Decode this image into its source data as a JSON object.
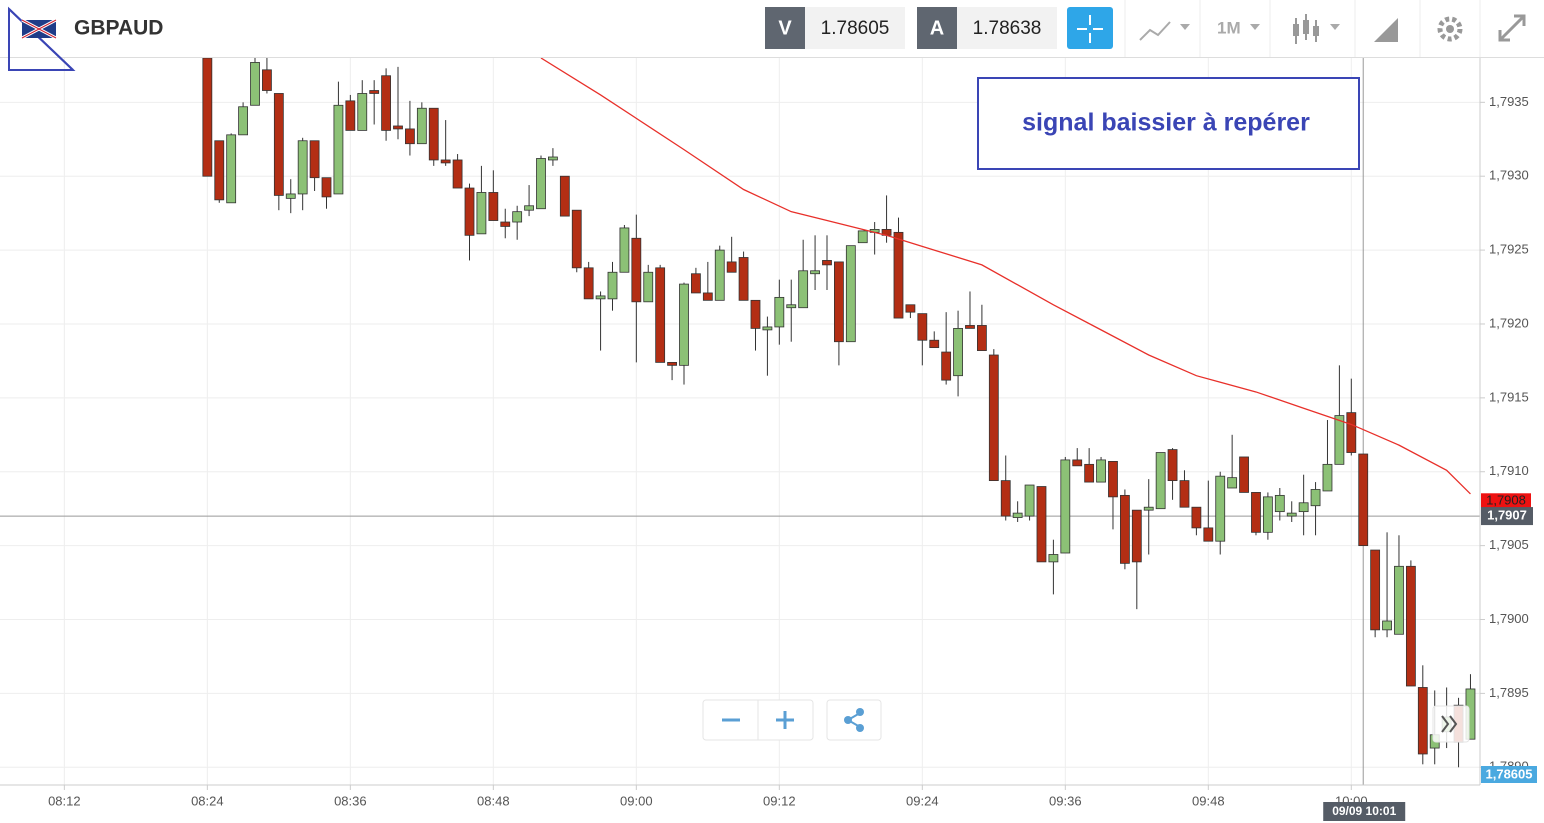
{
  "header": {
    "symbol": "GBPAUD",
    "bid_label": "V",
    "bid": "1.78605",
    "ask_label": "A",
    "ask": "1.78638",
    "timeframe": "1M"
  },
  "annotation": "signal baissier à repérer",
  "chart_data": {
    "type": "candlestick",
    "up_color": "#8cc176",
    "down_color": "#b32e14",
    "x": [
      504,
      505,
      506,
      507,
      508,
      509,
      510,
      511,
      512,
      513,
      514,
      515,
      516,
      517,
      518,
      519,
      520,
      521,
      522,
      523,
      524,
      525,
      526,
      527,
      528,
      529,
      530,
      531,
      532,
      533,
      534,
      535,
      536,
      537,
      538,
      539,
      540,
      541,
      542,
      543,
      544,
      545,
      546,
      547,
      548,
      549,
      550,
      551,
      552,
      553,
      554,
      555,
      556,
      557,
      558,
      559,
      560,
      561,
      562,
      563,
      564,
      565,
      566,
      567,
      568,
      569,
      570,
      571,
      572,
      573,
      574,
      575,
      576,
      577,
      578,
      579,
      580,
      581,
      582,
      583,
      584,
      585,
      586,
      587,
      588,
      589,
      590,
      591,
      592,
      593,
      594,
      595,
      596,
      597,
      598,
      599,
      600,
      601,
      602,
      603,
      604,
      605,
      606,
      607,
      608,
      609,
      610
    ],
    "open": [
      1.7938,
      1.79324,
      1.79282,
      1.79328,
      1.79348,
      1.79372,
      1.79356,
      1.79285,
      1.79288,
      1.79324,
      1.79299,
      1.79288,
      1.79351,
      1.79331,
      1.79358,
      1.79368,
      1.79334,
      1.79332,
      1.79322,
      1.79346,
      1.79311,
      1.79311,
      1.79292,
      1.79261,
      1.79289,
      1.79269,
      1.79269,
      1.79277,
      1.79278,
      1.79311,
      1.793,
      1.79277,
      1.79238,
      1.79217,
      1.79217,
      1.79235,
      1.79258,
      1.79215,
      1.79238,
      1.79174,
      1.79172,
      1.79234,
      1.79221,
      1.79216,
      1.79242,
      1.79245,
      1.79216,
      1.79196,
      1.79198,
      1.79211,
      1.79211,
      1.79234,
      1.79243,
      1.79242,
      1.79188,
      1.79255,
      1.79262,
      1.79264,
      1.79262,
      1.79213,
      1.79207,
      1.79189,
      1.79181,
      1.79165,
      1.79199,
      1.79199,
      1.79179,
      1.79094,
      1.79069,
      1.7907,
      1.7909,
      1.79039,
      1.79045,
      1.79108,
      1.79105,
      1.79093,
      1.79107,
      1.79084,
      1.79074,
      1.79074,
      1.79075,
      1.79115,
      1.79094,
      1.79076,
      1.79062,
      1.79053,
      1.79089,
      1.7911,
      1.79086,
      1.79059,
      1.79073,
      1.7907,
      1.79073,
      1.79077,
      1.79087,
      1.79105,
      1.7914,
      1.79112,
      1.79047,
      1.78993,
      1.7899,
      1.79036,
      1.78954,
      1.78913,
      1.78924,
      1.78942,
      1.78919
    ],
    "high": [
      1.7939,
      1.79324,
      1.79329,
      1.7935,
      1.79382,
      1.7938,
      1.79356,
      1.79298,
      1.79326,
      1.79324,
      1.79299,
      1.79364,
      1.79355,
      1.79365,
      1.79365,
      1.79373,
      1.79374,
      1.79351,
      1.7935,
      1.79346,
      1.79338,
      1.79315,
      1.79295,
      1.79307,
      1.79304,
      1.79278,
      1.7928,
      1.79294,
      1.79314,
      1.79319,
      1.793,
      1.79277,
      1.79242,
      1.79222,
      1.79242,
      1.79267,
      1.79274,
      1.7924,
      1.7924,
      1.79174,
      1.79228,
      1.79238,
      1.79242,
      1.79253,
      1.79259,
      1.79249,
      1.79216,
      1.79205,
      1.7923,
      1.7923,
      1.79257,
      1.7926,
      1.7926,
      1.79242,
      1.79253,
      1.79263,
      1.79269,
      1.79287,
      1.79272,
      1.79213,
      1.79207,
      1.79195,
      1.79208,
      1.79209,
      1.79222,
      1.79213,
      1.79183,
      1.79111,
      1.7908,
      1.79091,
      1.7909,
      1.79054,
      1.7911,
      1.79116,
      1.79116,
      1.7911,
      1.79107,
      1.79088,
      1.79074,
      1.79095,
      1.79113,
      1.79116,
      1.79101,
      1.79076,
      1.79094,
      1.791,
      1.79125,
      1.7911,
      1.79086,
      1.79086,
      1.79089,
      1.7908,
      1.79098,
      1.79093,
      1.79135,
      1.79172,
      1.79163,
      1.79112,
      1.79047,
      1.79059,
      1.79057,
      1.7904,
      1.78969,
      1.78952,
      1.78954,
      1.78947,
      1.78963
    ],
    "low": [
      1.793,
      1.79282,
      1.79282,
      1.79328,
      1.79348,
      1.79356,
      1.79277,
      1.79275,
      1.79277,
      1.7929,
      1.79278,
      1.79288,
      1.79331,
      1.79331,
      1.79335,
      1.79324,
      1.79325,
      1.79314,
      1.79322,
      1.79307,
      1.79307,
      1.79292,
      1.79243,
      1.79261,
      1.7927,
      1.79258,
      1.79257,
      1.79273,
      1.79278,
      1.79307,
      1.79273,
      1.79235,
      1.79217,
      1.79182,
      1.79209,
      1.79235,
      1.79174,
      1.79215,
      1.79174,
      1.79162,
      1.79159,
      1.79221,
      1.79216,
      1.79216,
      1.79235,
      1.79216,
      1.79182,
      1.79165,
      1.79186,
      1.79188,
      1.79211,
      1.79223,
      1.79223,
      1.79172,
      1.79188,
      1.79255,
      1.79247,
      1.79255,
      1.79204,
      1.79204,
      1.79172,
      1.79184,
      1.79159,
      1.79151,
      1.79197,
      1.79182,
      1.79094,
      1.79067,
      1.79066,
      1.79067,
      1.79039,
      1.79017,
      1.79045,
      1.79104,
      1.79093,
      1.79093,
      1.79061,
      1.79034,
      1.79007,
      1.79044,
      1.79075,
      1.79081,
      1.79076,
      1.79057,
      1.79053,
      1.79044,
      1.79089,
      1.79086,
      1.79057,
      1.79054,
      1.79067,
      1.79066,
      1.79057,
      1.79057,
      1.79087,
      1.79105,
      1.79111,
      1.7905,
      1.78988,
      1.78988,
      1.7899,
      1.78955,
      1.78902,
      1.78902,
      1.78913,
      1.789,
      1.78919
    ],
    "close": [
      1.793,
      1.79284,
      1.79328,
      1.79347,
      1.79377,
      1.79358,
      1.79287,
      1.79288,
      1.79324,
      1.79299,
      1.79286,
      1.79348,
      1.79331,
      1.79356,
      1.79356,
      1.79331,
      1.79332,
      1.79322,
      1.79346,
      1.79311,
      1.79309,
      1.79292,
      1.7926,
      1.79289,
      1.7927,
      1.79266,
      1.79276,
      1.7928,
      1.79312,
      1.79313,
      1.79273,
      1.79238,
      1.79217,
      1.79219,
      1.79235,
      1.79265,
      1.79215,
      1.79235,
      1.79174,
      1.79172,
      1.79227,
      1.79221,
      1.79216,
      1.7925,
      1.79235,
      1.79216,
      1.79197,
      1.79198,
      1.79218,
      1.79213,
      1.79236,
      1.79236,
      1.7924,
      1.79188,
      1.79253,
      1.79263,
      1.79264,
      1.7926,
      1.79204,
      1.79208,
      1.79189,
      1.79184,
      1.79162,
      1.79197,
      1.79197,
      1.79182,
      1.79094,
      1.7907,
      1.79072,
      1.79091,
      1.79039,
      1.79044,
      1.79108,
      1.79104,
      1.79093,
      1.79108,
      1.79083,
      1.79038,
      1.79039,
      1.79076,
      1.79113,
      1.79094,
      1.79076,
      1.79062,
      1.79053,
      1.79097,
      1.79096,
      1.79086,
      1.79059,
      1.79083,
      1.79084,
      1.79072,
      1.79079,
      1.79088,
      1.79105,
      1.79138,
      1.79113,
      1.7905,
      1.78993,
      1.78999,
      1.79036,
      1.78955,
      1.78909,
      1.78922,
      1.78934,
      1.78917,
      1.78953
    ],
    "overlay": {
      "type": "line",
      "color": "#e8302a",
      "x": [
        532,
        537,
        544,
        549,
        553,
        556,
        561,
        565,
        569,
        575,
        579,
        583,
        587,
        592,
        596,
        600,
        604,
        608,
        610
      ],
      "values": [
        1.7938,
        1.79355,
        1.79318,
        1.79291,
        1.79276,
        1.7927,
        1.7926,
        1.7925,
        1.7924,
        1.79213,
        1.79196,
        1.79179,
        1.79165,
        1.79154,
        1.79143,
        1.79132,
        1.79118,
        1.79101,
        1.79085
      ]
    },
    "xlim": [
      486.6,
      610.8
    ],
    "xticks": [
      {
        "value": 492,
        "label": "08:12"
      },
      {
        "value": 504,
        "label": "08:24"
      },
      {
        "value": 516,
        "label": "08:36"
      },
      {
        "value": 528,
        "label": "08:48"
      },
      {
        "value": 540,
        "label": "09:00"
      },
      {
        "value": 552,
        "label": "09:12"
      },
      {
        "value": 564,
        "label": "09:24"
      },
      {
        "value": 576,
        "label": "09:36"
      },
      {
        "value": 588,
        "label": "09:48"
      },
      {
        "value": 600,
        "label": "10:00"
      }
    ],
    "ylim": [
      1.78888,
      1.7938
    ],
    "yticks": [
      {
        "value": 1.7935,
        "label": "1,7935"
      },
      {
        "value": 1.793,
        "label": "1,7930"
      },
      {
        "value": 1.7925,
        "label": "1,7925"
      },
      {
        "value": 1.792,
        "label": "1,7920"
      },
      {
        "value": 1.7915,
        "label": "1,7915"
      },
      {
        "value": 1.791,
        "label": "1,7910"
      },
      {
        "value": 1.7905,
        "label": "1,7905"
      },
      {
        "value": 1.79,
        "label": "1,7900"
      },
      {
        "value": 1.7895,
        "label": "1,7895"
      },
      {
        "value": 1.789,
        "label": "1,7890"
      }
    ],
    "grid": true,
    "price_tag": {
      "value": 1.7908,
      "label": "1,7908",
      "color": "#ee1111"
    },
    "crosshair": {
      "x": 601,
      "x_label": "09/09 10:01",
      "y": 1.7907,
      "y_label": "1,7907"
    },
    "current_price_label": "1,78605"
  }
}
